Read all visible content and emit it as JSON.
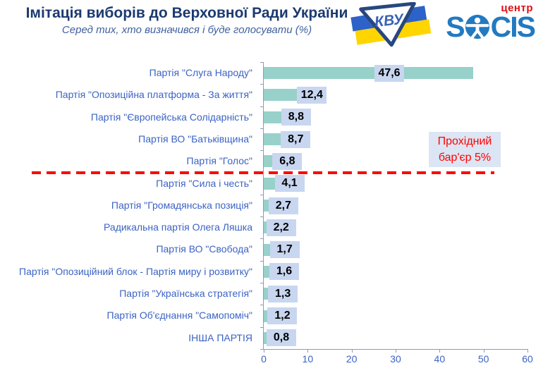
{
  "header": {
    "title": "Імітація виборів до Верховної Ради України",
    "subtitle": "Серед тих, хто визначився і буде голосувати (%)"
  },
  "logos": {
    "kvu_monogram": "КВУ",
    "socis_part1": "S",
    "socis_part2": "CIS",
    "socis_center": "центр"
  },
  "annotation": {
    "threshold_label": "Прохідний бар'єр 5%"
  },
  "colors": {
    "bar": "#97d1ca",
    "value_chip_bg": "#c8d6f0",
    "threshold_red": "#ff0000",
    "title_navy": "#1c3a70",
    "category_blue": "#3b63c4",
    "axis_gray": "#8b9cb6",
    "socis_blue": "#227ac1",
    "centr_red": "#e30b13",
    "flag_blue": "#2d62c8",
    "flag_yellow": "#ffd500",
    "annotation_bg": "#dbe5f3"
  },
  "chart_data": {
    "type": "bar",
    "orientation": "horizontal",
    "title": "Імітація виборів до Верховної Ради України",
    "subtitle": "Серед тих, хто визначився і буде голосувати (%)",
    "categories": [
      "Партія \"Слуга Народу\"",
      "Партія \"Опозиційна платформа - За життя\"",
      "Партія \"Європейська Солідарність\"",
      "Партія ВО \"Батьківщина\"",
      "Партія \"Голос\"",
      "Партія \"Сила і честь\"",
      "Партія \"Громадянська позиція\"",
      "Радикальна партія Олега Ляшка",
      "Партія ВО \"Свобода\"",
      "Партія \"Опозиційний блок - Партія миру і розвитку\"",
      "Партія \"Українська стратегія\"",
      "Партія Об'єднання \"Самопоміч\"",
      "ІНША ПАРТІЯ"
    ],
    "values": [
      47.6,
      12.4,
      8.8,
      8.7,
      6.8,
      4.1,
      2.7,
      2.2,
      1.7,
      1.6,
      1.3,
      1.2,
      0.8
    ],
    "value_labels": [
      "47,6",
      "12,4",
      "8,8",
      "8,7",
      "6,8",
      "4,1",
      "2,7",
      "2,2",
      "1,7",
      "1,6",
      "1,3",
      "1,2",
      "0,8"
    ],
    "xlim": [
      0,
      60
    ],
    "x_ticks": [
      0,
      10,
      20,
      30,
      40,
      50,
      60
    ],
    "grid": false,
    "legend": false,
    "threshold": {
      "value": 5,
      "label": "Прохідний бар'єр 5%",
      "parties_above": 5
    }
  }
}
